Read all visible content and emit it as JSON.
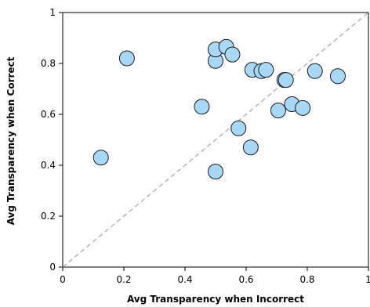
{
  "chart_data": {
    "type": "scatter",
    "title": "",
    "xlabel": "Avg Transparency when Incorrect",
    "ylabel": "Avg Transparency when Correct",
    "xlim": [
      0,
      1
    ],
    "ylim": [
      0,
      1
    ],
    "x_ticks": [
      "0",
      "0.2",
      "0.4",
      "0.6",
      "0.8",
      "1"
    ],
    "y_ticks": [
      "0",
      "0.2",
      "0.4",
      "0.6",
      "0.8",
      "1"
    ],
    "grid": false,
    "legend": "none",
    "reference_line": "diagonal dashed y = x",
    "colors": {
      "marker_fill": "#a8d8f5",
      "marker_stroke": "#1a1a1a",
      "diagonal": "#a6a6a6",
      "axis": "#000000"
    },
    "points": [
      {
        "x": 0.125,
        "y": 0.43
      },
      {
        "x": 0.21,
        "y": 0.82
      },
      {
        "x": 0.455,
        "y": 0.63
      },
      {
        "x": 0.5,
        "y": 0.375
      },
      {
        "x": 0.5,
        "y": 0.81
      },
      {
        "x": 0.5,
        "y": 0.855
      },
      {
        "x": 0.535,
        "y": 0.865
      },
      {
        "x": 0.555,
        "y": 0.835
      },
      {
        "x": 0.575,
        "y": 0.545
      },
      {
        "x": 0.615,
        "y": 0.47
      },
      {
        "x": 0.62,
        "y": 0.775
      },
      {
        "x": 0.65,
        "y": 0.77
      },
      {
        "x": 0.665,
        "y": 0.775
      },
      {
        "x": 0.705,
        "y": 0.615
      },
      {
        "x": 0.725,
        "y": 0.735
      },
      {
        "x": 0.73,
        "y": 0.735
      },
      {
        "x": 0.75,
        "y": 0.64
      },
      {
        "x": 0.785,
        "y": 0.625
      },
      {
        "x": 0.825,
        "y": 0.77
      },
      {
        "x": 0.9,
        "y": 0.75
      }
    ]
  }
}
